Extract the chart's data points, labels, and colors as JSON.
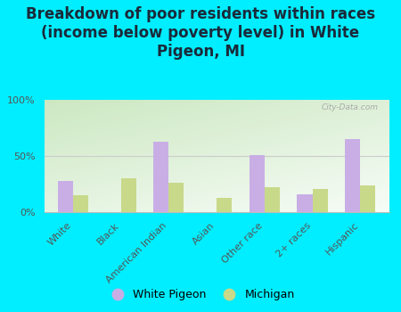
{
  "title": "Breakdown of poor residents within races\n(income below poverty level) in White\nPigeon, MI",
  "categories": [
    "White",
    "Black",
    "American Indian",
    "Asian",
    "Other race",
    "2+ races",
    "Hispanic"
  ],
  "white_pigeon": [
    28,
    0,
    63,
    0,
    51,
    16,
    65
  ],
  "michigan": [
    15,
    30,
    26,
    13,
    22,
    21,
    24
  ],
  "color_wp": "#c9aee5",
  "color_mi": "#c8d98a",
  "bg_outer": "#00eeff",
  "bg_chart_topleft": "#c8e6c0",
  "bg_chart_white": "#f8fff8",
  "yticks": [
    0,
    50,
    100
  ],
  "ylabels": [
    "0%",
    "50%",
    "100%"
  ],
  "ylim": [
    0,
    100
  ],
  "bar_width": 0.32,
  "legend_wp": "White Pigeon",
  "legend_mi": "Michigan",
  "watermark": "City-Data.com",
  "title_fontsize": 12,
  "tick_fontsize": 8,
  "legend_fontsize": 9,
  "title_color": "#1a2a3a"
}
